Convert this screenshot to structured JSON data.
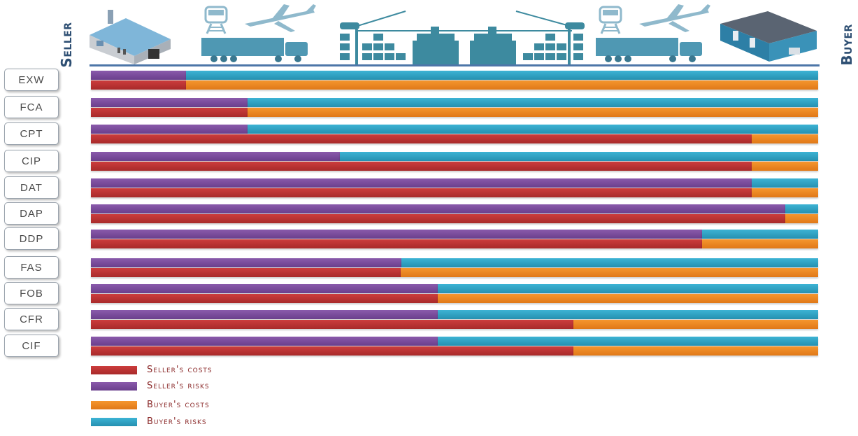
{
  "header": {
    "seller_label": "Seller",
    "buyer_label": "Buyer",
    "illustrations": [
      "factory-icon",
      "train-icon",
      "airplane-icon",
      "truck-icon",
      "port-crane-icon",
      "ship-icon",
      "ship-icon",
      "port-crane-icon",
      "train-icon",
      "airplane-icon",
      "truck-icon",
      "warehouse-icon"
    ]
  },
  "colors": {
    "seller_costs": "#b83232",
    "seller_risks": "#7a4c9e",
    "buyer_costs": "#ec8623",
    "buyer_risks": "#30a3c4",
    "ground_line": "#4d76a8"
  },
  "chart_data": {
    "type": "bar",
    "orientation": "horizontal",
    "stacked": true,
    "title": "",
    "xlabel": "",
    "ylabel": "",
    "xlim": [
      0,
      100
    ],
    "grid": false,
    "legend_position": "bottom-left",
    "axis_ends": {
      "left": "Seller",
      "right": "Buyer"
    },
    "categories": [
      "EXW",
      "FCA",
      "CPT",
      "CIP",
      "DAT",
      "DAP",
      "DDP",
      "FAS",
      "FOB",
      "CFR",
      "CIF"
    ],
    "series": [
      {
        "name": "Seller's risks",
        "key": "seller_risks",
        "row": "risk",
        "values": [
          13.1,
          21.5,
          21.5,
          34.2,
          90.9,
          95.5,
          84.0,
          42.7,
          47.7,
          47.7,
          47.7
        ]
      },
      {
        "name": "Buyer's risks",
        "key": "buyer_risks",
        "row": "risk",
        "values": [
          86.9,
          78.5,
          78.5,
          65.8,
          9.1,
          4.5,
          16.0,
          57.3,
          52.3,
          52.3,
          52.3
        ]
      },
      {
        "name": "Seller's costs",
        "key": "seller_costs",
        "row": "cost",
        "values": [
          13.1,
          21.5,
          90.9,
          90.9,
          90.9,
          95.5,
          84.0,
          42.6,
          47.7,
          66.3,
          66.3
        ]
      },
      {
        "name": "Buyer's costs",
        "key": "buyer_costs",
        "row": "cost",
        "values": [
          86.9,
          78.5,
          9.1,
          9.1,
          9.1,
          4.5,
          16.0,
          57.4,
          52.3,
          33.7,
          33.7
        ]
      }
    ],
    "legend": [
      {
        "label": "Seller's costs",
        "key": "seller_costs"
      },
      {
        "label": "Seller's risks",
        "key": "seller_risks"
      },
      {
        "label": "Buyer's costs",
        "key": "buyer_costs"
      },
      {
        "label": "Buyer's risks",
        "key": "buyer_risks"
      }
    ]
  }
}
